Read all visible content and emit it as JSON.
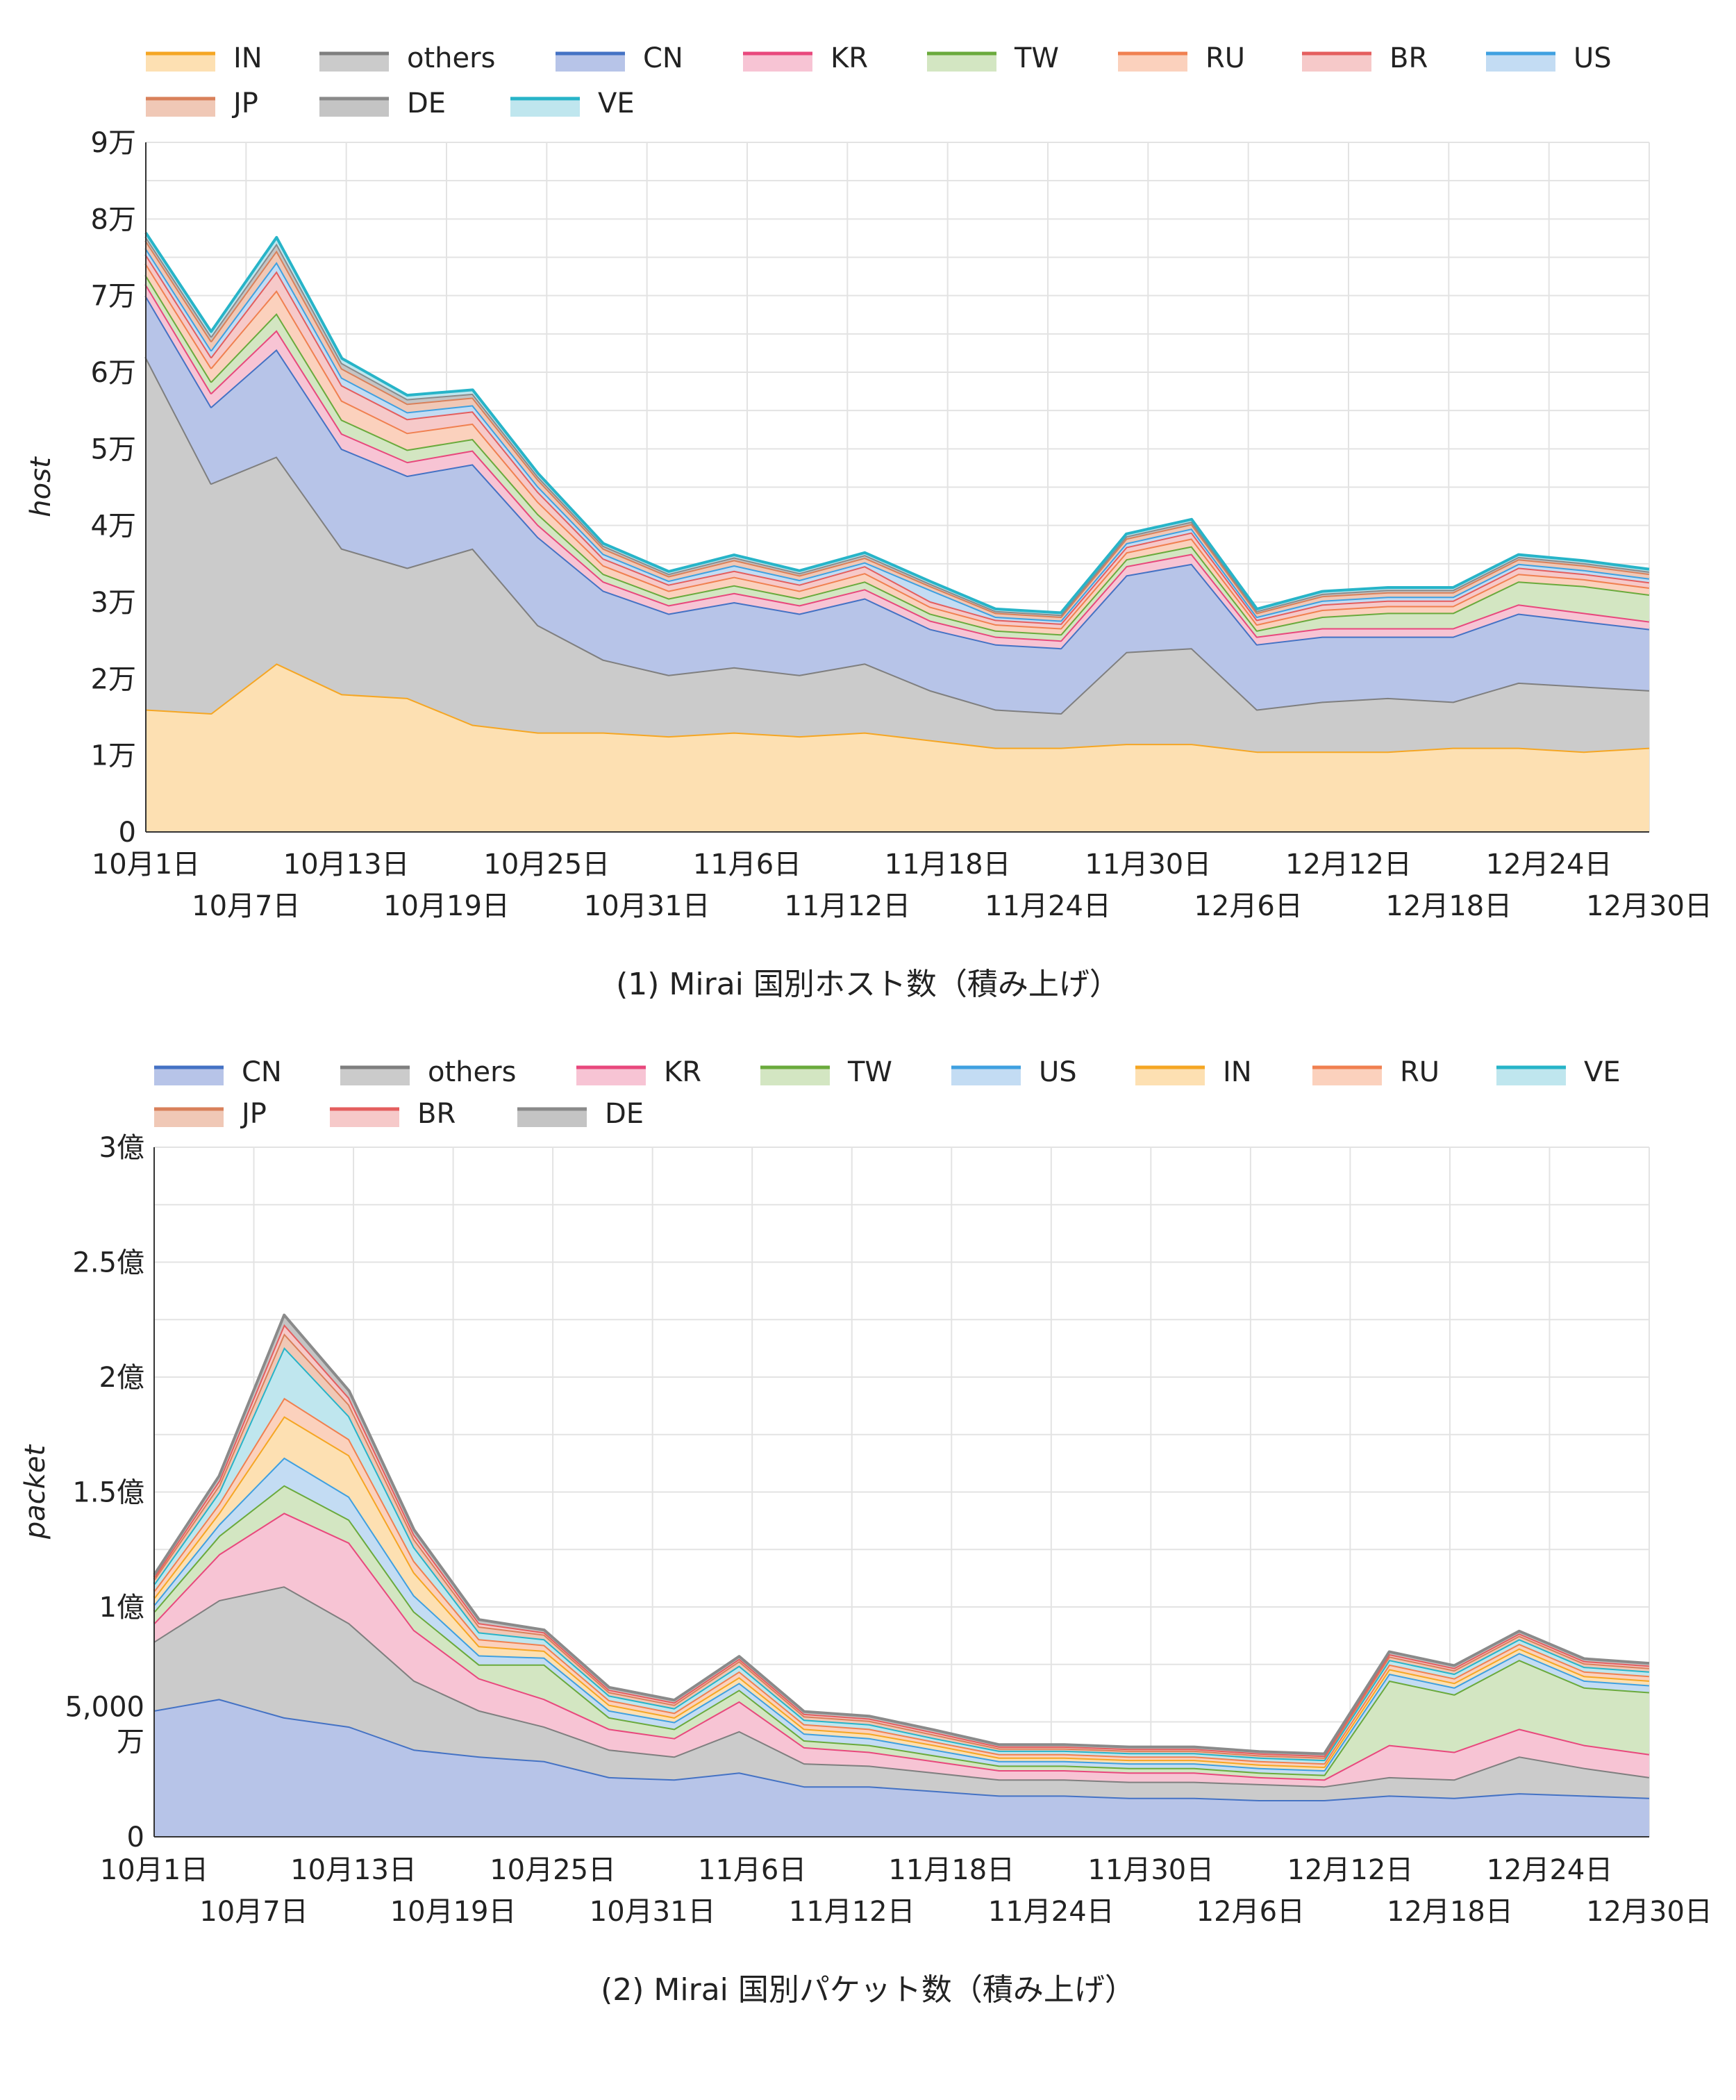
{
  "chart_data": [
    {
      "type": "area",
      "stacked": true,
      "title": "",
      "caption": "(1) Mirai 国別ホスト数（積み上げ）",
      "xlabel": "",
      "ylabel": "host",
      "ylim": [
        0,
        90000
      ],
      "yticks": [
        0,
        10000,
        20000,
        30000,
        40000,
        50000,
        60000,
        70000,
        80000,
        90000
      ],
      "ytick_labels": [
        "0",
        "1万",
        "2万",
        "3万",
        "4万",
        "5万",
        "6万",
        "7万",
        "8万",
        "9万"
      ],
      "x_tick_labels_row1": [
        "10月1日",
        "10月13日",
        "10月25日",
        "11月6日",
        "11月18日",
        "11月30日",
        "12月12日",
        "12月24日"
      ],
      "x_tick_labels_row2": [
        "10月7日",
        "10月19日",
        "10月31日",
        "11月12日",
        "11月24日",
        "12月6日",
        "12月18日",
        "12月30日"
      ],
      "legend_position": "top",
      "x": [
        "10月1日",
        "10月5日",
        "10月9日",
        "10月13日",
        "10月17日",
        "10月21日",
        "10月25日",
        "10月29日",
        "11月2日",
        "11月6日",
        "11月10日",
        "11月14日",
        "11月18日",
        "11月22日",
        "11月26日",
        "11月30日",
        "12月4日",
        "12月8日",
        "12月12日",
        "12月16日",
        "12月20日",
        "12月24日",
        "12月28日",
        "12月31日"
      ],
      "series": [
        {
          "name": "IN",
          "color": "#f5a623",
          "fill": "#fde0b2",
          "values": [
            16000,
            15500,
            22000,
            18000,
            17500,
            14000,
            13000,
            13000,
            12500,
            13000,
            12500,
            13000,
            12000,
            11000,
            11000,
            11500,
            11500,
            10500,
            10500,
            10500,
            11000,
            11000,
            10500,
            11000
          ]
        },
        {
          "name": "others",
          "color": "#7f7f7f",
          "fill": "#cbcbcb",
          "values": [
            46000,
            30000,
            27000,
            19000,
            17000,
            23000,
            14000,
            9500,
            8000,
            8500,
            8000,
            9000,
            6500,
            5000,
            4500,
            12000,
            12500,
            5500,
            6500,
            7000,
            6000,
            8500,
            8500,
            7500
          ]
        },
        {
          "name": "CN",
          "color": "#4472c4",
          "fill": "#b7c4e8",
          "values": [
            8000,
            10000,
            14000,
            13000,
            12000,
            11000,
            11500,
            9000,
            8000,
            8500,
            8000,
            8500,
            8000,
            8500,
            8500,
            10000,
            11000,
            8500,
            8500,
            8000,
            8500,
            9000,
            8500,
            8000
          ]
        },
        {
          "name": "KR",
          "color": "#e8487d",
          "fill": "#f7c4d4",
          "values": [
            1500,
            1800,
            2500,
            2000,
            1800,
            1800,
            1600,
            1200,
            1100,
            1200,
            1100,
            1200,
            1100,
            1000,
            1000,
            1200,
            1300,
            1000,
            1100,
            1100,
            1100,
            1200,
            1100,
            1000
          ]
        },
        {
          "name": "TW",
          "color": "#6aaa3c",
          "fill": "#d3e6c2",
          "values": [
            1200,
            1500,
            2200,
            1800,
            1600,
            1500,
            1400,
            1000,
            900,
            1000,
            900,
            1000,
            900,
            800,
            800,
            900,
            1000,
            800,
            1500,
            2000,
            2000,
            3000,
            3500,
            3500
          ]
        },
        {
          "name": "RU",
          "color": "#f08050",
          "fill": "#fbd1bd",
          "values": [
            1500,
            1800,
            3000,
            2500,
            2200,
            2000,
            1600,
            1100,
            1000,
            1100,
            1000,
            1100,
            900,
            800,
            800,
            900,
            1000,
            800,
            900,
            900,
            900,
            1000,
            900,
            900
          ]
        },
        {
          "name": "BR",
          "color": "#e45e5e",
          "fill": "#f6c9c9",
          "values": [
            1200,
            1400,
            2500,
            2000,
            1800,
            1600,
            1300,
            900,
            800,
            800,
            800,
            900,
            700,
            600,
            600,
            700,
            800,
            600,
            700,
            700,
            700,
            800,
            700,
            700
          ]
        },
        {
          "name": "US",
          "color": "#3fa0e0",
          "fill": "#c3dcf3",
          "values": [
            800,
            900,
            1200,
            1000,
            900,
            800,
            700,
            600,
            500,
            700,
            600,
            500,
            1500,
            400,
            400,
            500,
            500,
            400,
            500,
            500,
            500,
            500,
            500,
            500
          ]
        },
        {
          "name": "JP",
          "color": "#d9805a",
          "fill": "#f0c8b6",
          "values": [
            1000,
            1200,
            1500,
            1200,
            1100,
            1000,
            900,
            700,
            600,
            700,
            600,
            600,
            500,
            500,
            500,
            600,
            600,
            500,
            600,
            600,
            600,
            600,
            600,
            600
          ]
        },
        {
          "name": "DE",
          "color": "#8a8a8a",
          "fill": "#c4c4c4",
          "values": [
            500,
            600,
            900,
            700,
            600,
            500,
            400,
            350,
            300,
            350,
            300,
            350,
            300,
            250,
            250,
            300,
            300,
            250,
            300,
            300,
            300,
            300,
            300,
            300
          ]
        },
        {
          "name": "VE",
          "color": "#27b4c8",
          "fill": "#bfe6ee",
          "values": [
            500,
            600,
            800,
            600,
            500,
            500,
            400,
            300,
            300,
            300,
            300,
            300,
            300,
            250,
            250,
            300,
            300,
            250,
            300,
            300,
            300,
            300,
            300,
            300
          ]
        }
      ]
    },
    {
      "type": "area",
      "stacked": true,
      "title": "",
      "caption": "(2) Mirai 国別パケット数（積み上げ）",
      "xlabel": "",
      "ylabel": "packet",
      "ylim": [
        0,
        300000000
      ],
      "yticks": [
        0,
        50000000,
        100000000,
        150000000,
        200000000,
        250000000,
        300000000
      ],
      "ytick_labels": [
        "0",
        "5,000\n万",
        "1億",
        "1.5億",
        "2億",
        "2.5億",
        "3億"
      ],
      "x_tick_labels_row1": [
        "10月1日",
        "10月13日",
        "10月25日",
        "11月6日",
        "11月18日",
        "11月30日",
        "12月12日",
        "12月24日"
      ],
      "x_tick_labels_row2": [
        "10月7日",
        "10月19日",
        "10月31日",
        "11月12日",
        "11月24日",
        "12月6日",
        "12月18日",
        "12月30日"
      ],
      "legend_position": "top",
      "x": [
        "10月1日",
        "10月5日",
        "10月9日",
        "10月13日",
        "10月17日",
        "10月21日",
        "10月25日",
        "10月29日",
        "11月2日",
        "11月6日",
        "11月10日",
        "11月14日",
        "11月18日",
        "11月22日",
        "11月26日",
        "11月30日",
        "12月4日",
        "12月8日",
        "12月12日",
        "12月16日",
        "12月20日",
        "12月24日",
        "12月28日",
        "12月31日"
      ],
      "series": [
        {
          "name": "CN",
          "color": "#4472c4",
          "fill": "#b7c4e8",
          "values": [
            55000000,
            60000000,
            52000000,
            48000000,
            38000000,
            35000000,
            33000000,
            26000000,
            25000000,
            28000000,
            22000000,
            22000000,
            20000000,
            18000000,
            18000000,
            17000000,
            17000000,
            16000000,
            16000000,
            18000000,
            17000000,
            19000000,
            18000000,
            17000000
          ]
        },
        {
          "name": "others",
          "color": "#7f7f7f",
          "fill": "#cbcbcb",
          "values": [
            30000000,
            43000000,
            57000000,
            45000000,
            30000000,
            20000000,
            15000000,
            12000000,
            10000000,
            18000000,
            10000000,
            9000000,
            8000000,
            7000000,
            7000000,
            7000000,
            7000000,
            7000000,
            6000000,
            8000000,
            8000000,
            16000000,
            12000000,
            9000000
          ]
        },
        {
          "name": "KR",
          "color": "#e8487d",
          "fill": "#f7c4d4",
          "values": [
            8000000,
            20000000,
            32000000,
            35000000,
            22000000,
            14000000,
            12000000,
            9000000,
            8000000,
            13000000,
            7000000,
            6000000,
            5000000,
            4000000,
            4000000,
            4000000,
            4000000,
            3000000,
            3000000,
            14000000,
            12000000,
            12000000,
            10000000,
            10000000
          ]
        },
        {
          "name": "TW",
          "color": "#6aaa3c",
          "fill": "#d3e6c2",
          "values": [
            5000000,
            8000000,
            12000000,
            10000000,
            8000000,
            6000000,
            15000000,
            5000000,
            4000000,
            5000000,
            3000000,
            3000000,
            2500000,
            2000000,
            2000000,
            2000000,
            2000000,
            2000000,
            2000000,
            28000000,
            25000000,
            30000000,
            25000000,
            27000000
          ]
        },
        {
          "name": "US",
          "color": "#3fa0e0",
          "fill": "#c3dcf3",
          "values": [
            3000000,
            5000000,
            12000000,
            10000000,
            7000000,
            4000000,
            3000000,
            3000000,
            3000000,
            3000000,
            3000000,
            3000000,
            2500000,
            2000000,
            2000000,
            2000000,
            2000000,
            2000000,
            2000000,
            3000000,
            3000000,
            3000000,
            3000000,
            3000000
          ]
        },
        {
          "name": "IN",
          "color": "#f5a623",
          "fill": "#fde0b2",
          "values": [
            3000000,
            5000000,
            18000000,
            18000000,
            10000000,
            4000000,
            3000000,
            2500000,
            2000000,
            2500000,
            2000000,
            2000000,
            2000000,
            1500000,
            1500000,
            1500000,
            1500000,
            1500000,
            1500000,
            2000000,
            2000000,
            2000000,
            2000000,
            2000000
          ]
        },
        {
          "name": "RU",
          "color": "#f08050",
          "fill": "#fbd1bd",
          "values": [
            3000000,
            4000000,
            8000000,
            7000000,
            5000000,
            3000000,
            2500000,
            2000000,
            2000000,
            2500000,
            2000000,
            2000000,
            1500000,
            1500000,
            1500000,
            1500000,
            1500000,
            1500000,
            1500000,
            2000000,
            2000000,
            2000000,
            2000000,
            2000000
          ]
        },
        {
          "name": "VE",
          "color": "#27b4c8",
          "fill": "#bfe6ee",
          "values": [
            3000000,
            5000000,
            22000000,
            10000000,
            6000000,
            3000000,
            2500000,
            2000000,
            2000000,
            2500000,
            2000000,
            2000000,
            1500000,
            1500000,
            1500000,
            1500000,
            1500000,
            1500000,
            1500000,
            2000000,
            2000000,
            2000000,
            2000000,
            2000000
          ]
        },
        {
          "name": "JP",
          "color": "#d9805a",
          "fill": "#f0c8b6",
          "values": [
            2000000,
            3000000,
            6000000,
            5000000,
            3500000,
            2500000,
            2000000,
            1500000,
            1500000,
            2000000,
            1500000,
            1500000,
            1500000,
            1000000,
            1000000,
            1000000,
            1000000,
            1000000,
            1000000,
            1500000,
            1500000,
            1500000,
            1500000,
            1500000
          ]
        },
        {
          "name": "BR",
          "color": "#e45e5e",
          "fill": "#f6c9c9",
          "values": [
            1000000,
            2000000,
            4000000,
            3000000,
            2000000,
            1500000,
            1000000,
            1000000,
            1000000,
            1000000,
            1000000,
            1000000,
            1000000,
            800000,
            800000,
            800000,
            800000,
            800000,
            800000,
            1000000,
            1000000,
            1000000,
            1000000,
            1000000
          ]
        },
        {
          "name": "DE",
          "color": "#8a8a8a",
          "fill": "#c4c4c4",
          "values": [
            1000000,
            2000000,
            4000000,
            3000000,
            2000000,
            1500000,
            1000000,
            1000000,
            1000000,
            1000000,
            1000000,
            1000000,
            1000000,
            800000,
            800000,
            800000,
            800000,
            800000,
            800000,
            1000000,
            1000000,
            1000000,
            1000000,
            1000000
          ]
        }
      ]
    }
  ]
}
